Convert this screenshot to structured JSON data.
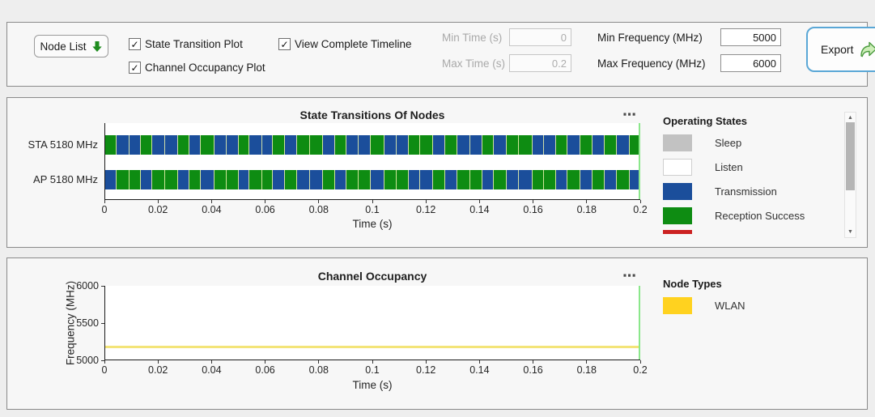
{
  "toolbar": {
    "node_list_label": "Node List",
    "checkboxes": [
      {
        "label": "State Transition Plot",
        "checked": true
      },
      {
        "label": "Channel Occupancy Plot",
        "checked": true
      },
      {
        "label": "View Complete Timeline",
        "checked": true
      }
    ],
    "fields": [
      {
        "label": "Min Time (s)",
        "value": "0",
        "disabled": true
      },
      {
        "label": "Max Time (s)",
        "value": "0.2",
        "disabled": true
      },
      {
        "label": "Min Frequency (MHz)",
        "value": "5000",
        "disabled": false
      },
      {
        "label": "Max Frequency (MHz)",
        "value": "6000",
        "disabled": false
      }
    ],
    "export_label": "Export"
  },
  "icons": {
    "plot_menu": "⋯",
    "checkbox_check": "✓",
    "scroll_up": "▲",
    "scroll_down": "▼"
  },
  "plot1": {
    "title": "State Transitions Of Nodes",
    "rows": [
      {
        "label": "STA 5180 MHz"
      },
      {
        "label": "AP 5180 MHz"
      }
    ],
    "x_ticks": [
      "0",
      "0.02",
      "0.04",
      "0.06",
      "0.08",
      "0.1",
      "0.12",
      "0.14",
      "0.16",
      "0.18",
      "0.2"
    ],
    "xlabel": "Time (s)",
    "legend": {
      "title": "Operating States",
      "items": [
        {
          "label": "Sleep",
          "color": "#c2c2c2"
        },
        {
          "label": "Listen",
          "color": "#ffffff"
        },
        {
          "label": "Transmission",
          "color": "#1b4e9b"
        },
        {
          "label": "Reception Success",
          "color": "#0e8c12"
        }
      ],
      "partial_color": "#cc2222"
    }
  },
  "plot2": {
    "title": "Channel Occupancy",
    "ylabel": "Frequency (MHz)",
    "y_ticks": [
      "6000",
      "5500",
      "5000"
    ],
    "x_ticks": [
      "0",
      "0.02",
      "0.04",
      "0.06",
      "0.08",
      "0.1",
      "0.12",
      "0.14",
      "0.16",
      "0.18",
      "0.2"
    ],
    "xlabel": "Time (s)",
    "legend": {
      "title": "Node Types",
      "items": [
        {
          "label": "WLAN",
          "color": "#ffd21f"
        }
      ]
    }
  },
  "colors": {
    "transmission": "#1b4e9b",
    "reception_success": "#0e8c12",
    "sleep": "#c2c2c2",
    "listen": "#ffffff",
    "partial_red": "#cc2222",
    "wlan_yellow": "#ffd21f",
    "occupancy_line": "#f3e478",
    "timeline_cursor": "#8be78b",
    "export_border": "#5aa7d6",
    "node_list_arrow": "#1e8c1e"
  },
  "chart_data": [
    {
      "type": "state-timeline",
      "title": "State Transitions Of Nodes",
      "xlabel": "Time (s)",
      "xlim": [
        0,
        0.2
      ],
      "x_ticks": [
        0,
        0.02,
        0.04,
        0.06,
        0.08,
        0.1,
        0.12,
        0.14,
        0.16,
        0.18,
        0.2
      ],
      "rows": [
        "STA 5180 MHz",
        "AP 5180 MHz"
      ],
      "legend_title": "Operating States",
      "legend": [
        "Sleep",
        "Listen",
        "Transmission",
        "Reception Success"
      ],
      "note": "STA and AP alternate complementary Transmission(B)/Reception Success(R) segments across the whole 0-0.2 s timeline; AP state is the opposite of STA state",
      "segments": {
        "widths": [
          2.1,
          2.4,
          2.2,
          2.0,
          2.5,
          2.3,
          2.2,
          2.1,
          2.6,
          2.2,
          2.3,
          2.0,
          2.4,
          1.9,
          2.2,
          2.3,
          2.5,
          2.4,
          2.2,
          2.1,
          2.3,
          2.2,
          2.6,
          2.3,
          2.2,
          2.1,
          2.5,
          2.2,
          2.3,
          2.4,
          2.2,
          2.1,
          2.4,
          2.3,
          2.5,
          2.2,
          2.3,
          2.1,
          2.4,
          2.2,
          2.3,
          2.2,
          2.4,
          2.0
        ],
        "sta_states": [
          "R",
          "B",
          "B",
          "R",
          "B",
          "B",
          "R",
          "B",
          "R",
          "B",
          "B",
          "R",
          "B",
          "B",
          "R",
          "B",
          "R",
          "R",
          "B",
          "R",
          "B",
          "B",
          "R",
          "B",
          "B",
          "R",
          "R",
          "B",
          "R",
          "B",
          "B",
          "R",
          "B",
          "R",
          "R",
          "B",
          "B",
          "R",
          "B",
          "R",
          "B",
          "R",
          "B",
          "R"
        ]
      }
    },
    {
      "type": "line",
      "title": "Channel Occupancy",
      "xlabel": "Time (s)",
      "ylabel": "Frequency (MHz)",
      "xlim": [
        0,
        0.2
      ],
      "ylim": [
        5000,
        6000
      ],
      "x_ticks": [
        0,
        0.02,
        0.04,
        0.06,
        0.08,
        0.1,
        0.12,
        0.14,
        0.16,
        0.18,
        0.2
      ],
      "y_ticks": [
        5000,
        5500,
        6000
      ],
      "legend_title": "Node Types",
      "series": [
        {
          "name": "WLAN",
          "x": [
            0,
            0.2
          ],
          "y": [
            5180,
            5180
          ],
          "color": "#ffd21f"
        }
      ]
    }
  ]
}
